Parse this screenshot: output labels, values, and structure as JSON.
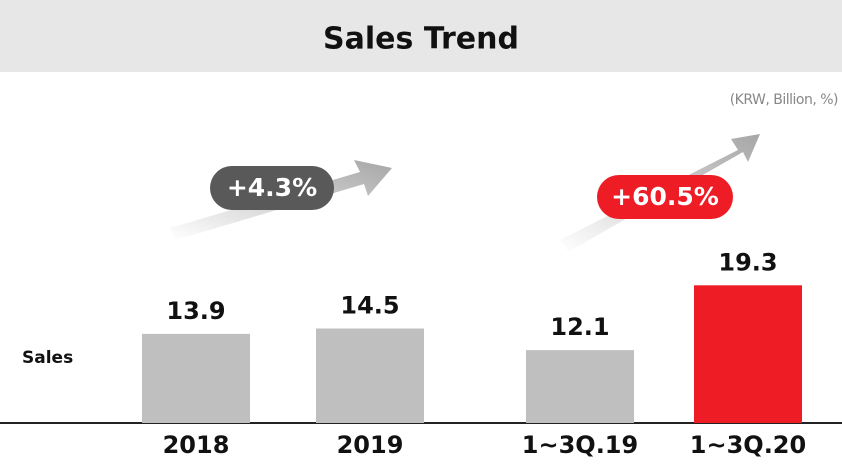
{
  "chart_data": {
    "type": "bar",
    "title": "Sales Trend",
    "subtitle": "(KRW, Billion, %)",
    "row_label": "Sales",
    "categories": [
      "2018",
      "2019",
      "1~3Q.19",
      "1~3Q.20"
    ],
    "values": [
      13.9,
      14.5,
      12.1,
      19.3
    ],
    "colors": [
      "#bfbfbf",
      "#bfbfbf",
      "#bfbfbf",
      "#ee1c25"
    ],
    "ylim": [
      4,
      21
    ],
    "annotations": [
      {
        "text": "+4.3%",
        "color": "#595959"
      },
      {
        "text": "+60.5%",
        "color": "#ee1c25"
      }
    ]
  }
}
